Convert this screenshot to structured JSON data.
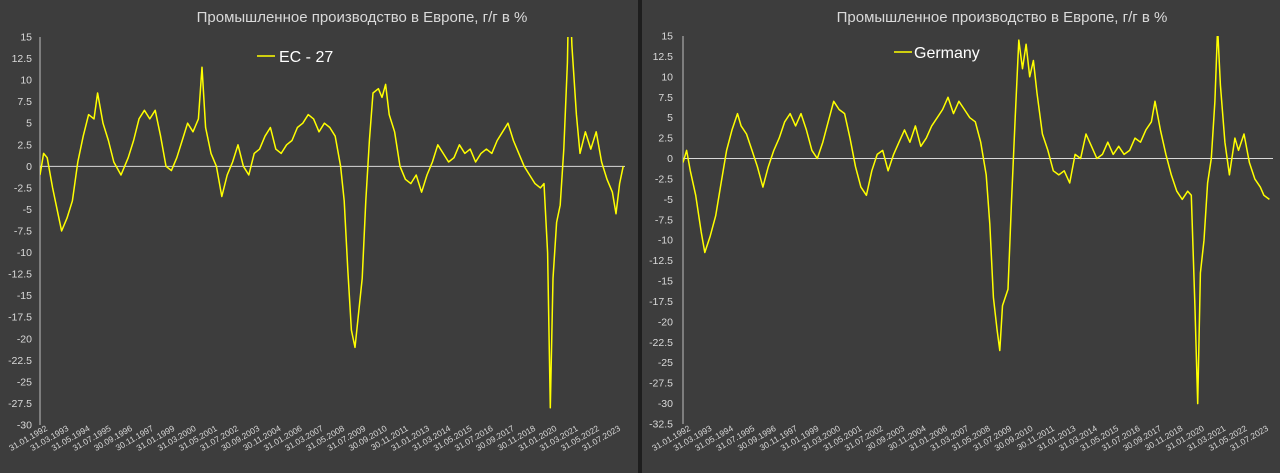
{
  "chart_data": [
    {
      "type": "line",
      "title": "Промышленное производство в Европе, г/г в %",
      "legend_position": "top-center",
      "grid": false,
      "ylim": [
        -30,
        15
      ],
      "y_ticks": [
        "15",
        "12.5",
        "10",
        "7.5",
        "5",
        "2.5",
        "0",
        "-2.5",
        "-5",
        "-7.5",
        "-10",
        "-12.5",
        "-15",
        "-17.5",
        "-20",
        "-22.5",
        "-25",
        "-27.5",
        "-30"
      ],
      "x_ticks": [
        "31.01.1992",
        "31.03.1993",
        "31.05.1994",
        "31.07.1995",
        "30.09.1996",
        "30.11.1997",
        "31.01.1999",
        "31.03.2000",
        "31.05.2001",
        "31.07.2002",
        "30.09.2003",
        "30.11.2004",
        "31.01.2006",
        "31.03.2007",
        "31.05.2008",
        "31.07.2009",
        "30.09.2010",
        "30.11.2011",
        "31.01.2013",
        "31.03.2014",
        "31.05.2015",
        "31.07.2016",
        "30.09.2017",
        "30.11.2018",
        "31.01.2020",
        "31.03.2021",
        "31.05.2022",
        "31.07.2023"
      ],
      "x_range": [
        1992.0,
        2024.5
      ],
      "series": [
        {
          "name": "ЕС - 27",
          "color": "#ffff00",
          "points": [
            [
              1992.0,
              -1.0
            ],
            [
              1992.2,
              1.5
            ],
            [
              1992.4,
              1.0
            ],
            [
              1992.7,
              -2.5
            ],
            [
              1993.0,
              -5.5
            ],
            [
              1993.2,
              -7.5
            ],
            [
              1993.5,
              -6.0
            ],
            [
              1993.8,
              -4.0
            ],
            [
              1994.1,
              0.5
            ],
            [
              1994.4,
              3.5
            ],
            [
              1994.7,
              6.0
            ],
            [
              1995.0,
              5.5
            ],
            [
              1995.2,
              8.5
            ],
            [
              1995.5,
              5.0
            ],
            [
              1995.8,
              3.0
            ],
            [
              1996.1,
              0.5
            ],
            [
              1996.5,
              -1.0
            ],
            [
              1996.9,
              1.0
            ],
            [
              1997.2,
              3.0
            ],
            [
              1997.5,
              5.5
            ],
            [
              1997.8,
              6.5
            ],
            [
              1998.1,
              5.5
            ],
            [
              1998.4,
              6.5
            ],
            [
              1998.7,
              3.5
            ],
            [
              1999.0,
              0.0
            ],
            [
              1999.3,
              -0.5
            ],
            [
              1999.6,
              1.0
            ],
            [
              1999.9,
              3.0
            ],
            [
              2000.2,
              5.0
            ],
            [
              2000.5,
              4.0
            ],
            [
              2000.8,
              5.5
            ],
            [
              2001.0,
              11.5
            ],
            [
              2001.2,
              4.5
            ],
            [
              2001.5,
              1.5
            ],
            [
              2001.8,
              0.0
            ],
            [
              2002.1,
              -3.5
            ],
            [
              2002.4,
              -1.0
            ],
            [
              2002.7,
              0.5
            ],
            [
              2003.0,
              2.5
            ],
            [
              2003.3,
              0.0
            ],
            [
              2003.6,
              -1.0
            ],
            [
              2003.9,
              1.5
            ],
            [
              2004.2,
              2.0
            ],
            [
              2004.5,
              3.5
            ],
            [
              2004.8,
              4.5
            ],
            [
              2005.1,
              2.0
            ],
            [
              2005.4,
              1.5
            ],
            [
              2005.7,
              2.5
            ],
            [
              2006.0,
              3.0
            ],
            [
              2006.3,
              4.5
            ],
            [
              2006.6,
              5.0
            ],
            [
              2006.9,
              6.0
            ],
            [
              2007.2,
              5.5
            ],
            [
              2007.5,
              4.0
            ],
            [
              2007.8,
              5.0
            ],
            [
              2008.1,
              4.5
            ],
            [
              2008.4,
              3.5
            ],
            [
              2008.7,
              0.0
            ],
            [
              2008.9,
              -4.0
            ],
            [
              2009.1,
              -12.0
            ],
            [
              2009.3,
              -19.0
            ],
            [
              2009.5,
              -21.0
            ],
            [
              2009.7,
              -17.0
            ],
            [
              2009.9,
              -13.0
            ],
            [
              2010.1,
              -4.0
            ],
            [
              2010.3,
              3.0
            ],
            [
              2010.5,
              8.5
            ],
            [
              2010.8,
              9.0
            ],
            [
              2011.0,
              8.0
            ],
            [
              2011.2,
              9.5
            ],
            [
              2011.4,
              6.0
            ],
            [
              2011.7,
              4.0
            ],
            [
              2012.0,
              0.0
            ],
            [
              2012.3,
              -1.5
            ],
            [
              2012.6,
              -2.0
            ],
            [
              2012.9,
              -1.0
            ],
            [
              2013.2,
              -3.0
            ],
            [
              2013.5,
              -1.0
            ],
            [
              2013.8,
              0.5
            ],
            [
              2014.1,
              2.5
            ],
            [
              2014.4,
              1.5
            ],
            [
              2014.7,
              0.5
            ],
            [
              2015.0,
              1.0
            ],
            [
              2015.3,
              2.5
            ],
            [
              2015.6,
              1.5
            ],
            [
              2015.9,
              2.0
            ],
            [
              2016.2,
              0.5
            ],
            [
              2016.5,
              1.5
            ],
            [
              2016.8,
              2.0
            ],
            [
              2017.1,
              1.5
            ],
            [
              2017.4,
              3.0
            ],
            [
              2017.7,
              4.0
            ],
            [
              2018.0,
              5.0
            ],
            [
              2018.3,
              3.0
            ],
            [
              2018.6,
              1.5
            ],
            [
              2018.9,
              0.0
            ],
            [
              2019.2,
              -1.0
            ],
            [
              2019.5,
              -2.0
            ],
            [
              2019.8,
              -2.5
            ],
            [
              2020.0,
              -2.0
            ],
            [
              2020.2,
              -10.0
            ],
            [
              2020.35,
              -28.0
            ],
            [
              2020.5,
              -13.0
            ],
            [
              2020.7,
              -6.5
            ],
            [
              2020.9,
              -4.5
            ],
            [
              2021.1,
              2.0
            ],
            [
              2021.3,
              12.0
            ],
            [
              2021.4,
              23.0
            ],
            [
              2021.55,
              14.0
            ],
            [
              2021.8,
              6.0
            ],
            [
              2022.0,
              1.5
            ],
            [
              2022.3,
              4.0
            ],
            [
              2022.6,
              2.0
            ],
            [
              2022.9,
              4.0
            ],
            [
              2023.2,
              0.5
            ],
            [
              2023.5,
              -1.5
            ],
            [
              2023.8,
              -3.0
            ],
            [
              2024.0,
              -5.5
            ],
            [
              2024.2,
              -2.0
            ],
            [
              2024.4,
              0.0
            ]
          ]
        }
      ]
    },
    {
      "type": "line",
      "title": "Промышленное производство в Европе, г/г в %",
      "legend_position": "top-center",
      "grid": false,
      "ylim": [
        -32.5,
        15
      ],
      "y_ticks": [
        "15",
        "12.5",
        "10",
        "7.5",
        "5",
        "2.5",
        "0",
        "-2.5",
        "-5",
        "-7.5",
        "-10",
        "-12.5",
        "-15",
        "-17.5",
        "-20",
        "-22.5",
        "-25",
        "-27.5",
        "-30",
        "-32.5"
      ],
      "x_ticks": [
        "31.01.1992",
        "31.03.1993",
        "31.05.1994",
        "31.07.1995",
        "30.09.1996",
        "30.11.1997",
        "31.01.1999",
        "31.03.2000",
        "31.05.2001",
        "31.07.2002",
        "30.09.2003",
        "30.11.2004",
        "31.01.2006",
        "31.03.2007",
        "31.05.2008",
        "31.07.2009",
        "30.09.2010",
        "30.11.2011",
        "31.01.2013",
        "31.03.2014",
        "31.05.2015",
        "31.07.2016",
        "30.09.2017",
        "30.11.2018",
        "31.01.2020",
        "31.03.2021",
        "31.05.2022",
        "31.07.2023"
      ],
      "x_range": [
        1992.0,
        2024.5
      ],
      "series": [
        {
          "name": "Germany",
          "color": "#ffff00",
          "points": [
            [
              1992.0,
              -0.5
            ],
            [
              1992.2,
              1.0
            ],
            [
              1992.4,
              -1.5
            ],
            [
              1992.7,
              -4.5
            ],
            [
              1993.0,
              -9.0
            ],
            [
              1993.2,
              -11.5
            ],
            [
              1993.5,
              -9.5
            ],
            [
              1993.8,
              -7.0
            ],
            [
              1994.1,
              -3.0
            ],
            [
              1994.4,
              1.0
            ],
            [
              1994.7,
              3.5
            ],
            [
              1995.0,
              5.5
            ],
            [
              1995.2,
              4.0
            ],
            [
              1995.5,
              3.0
            ],
            [
              1995.8,
              1.0
            ],
            [
              1996.1,
              -1.0
            ],
            [
              1996.4,
              -3.5
            ],
            [
              1996.7,
              -1.0
            ],
            [
              1997.0,
              1.0
            ],
            [
              1997.3,
              2.5
            ],
            [
              1997.6,
              4.5
            ],
            [
              1997.9,
              5.5
            ],
            [
              1998.2,
              4.0
            ],
            [
              1998.5,
              5.5
            ],
            [
              1998.8,
              3.5
            ],
            [
              1999.1,
              1.0
            ],
            [
              1999.4,
              0.0
            ],
            [
              1999.7,
              2.0
            ],
            [
              2000.0,
              4.5
            ],
            [
              2000.3,
              7.0
            ],
            [
              2000.6,
              6.0
            ],
            [
              2000.9,
              5.5
            ],
            [
              2001.2,
              2.5
            ],
            [
              2001.5,
              -1.0
            ],
            [
              2001.8,
              -3.5
            ],
            [
              2002.1,
              -4.5
            ],
            [
              2002.4,
              -1.5
            ],
            [
              2002.7,
              0.5
            ],
            [
              2003.0,
              1.0
            ],
            [
              2003.3,
              -1.5
            ],
            [
              2003.6,
              0.5
            ],
            [
              2003.9,
              2.0
            ],
            [
              2004.2,
              3.5
            ],
            [
              2004.5,
              2.0
            ],
            [
              2004.8,
              4.0
            ],
            [
              2005.1,
              1.5
            ],
            [
              2005.4,
              2.5
            ],
            [
              2005.7,
              4.0
            ],
            [
              2006.0,
              5.0
            ],
            [
              2006.3,
              6.0
            ],
            [
              2006.6,
              7.5
            ],
            [
              2006.9,
              5.5
            ],
            [
              2007.2,
              7.0
            ],
            [
              2007.5,
              6.0
            ],
            [
              2007.8,
              5.0
            ],
            [
              2008.1,
              4.5
            ],
            [
              2008.4,
              2.0
            ],
            [
              2008.7,
              -2.0
            ],
            [
              2008.9,
              -8.0
            ],
            [
              2009.1,
              -17.0
            ],
            [
              2009.3,
              -21.0
            ],
            [
              2009.45,
              -23.5
            ],
            [
              2009.6,
              -18.0
            ],
            [
              2009.9,
              -16.0
            ],
            [
              2010.1,
              -5.0
            ],
            [
              2010.3,
              5.0
            ],
            [
              2010.5,
              14.5
            ],
            [
              2010.7,
              11.0
            ],
            [
              2010.9,
              14.0
            ],
            [
              2011.1,
              10.0
            ],
            [
              2011.3,
              12.0
            ],
            [
              2011.5,
              8.0
            ],
            [
              2011.8,
              3.0
            ],
            [
              2012.1,
              1.0
            ],
            [
              2012.4,
              -1.5
            ],
            [
              2012.7,
              -2.0
            ],
            [
              2013.0,
              -1.5
            ],
            [
              2013.3,
              -3.0
            ],
            [
              2013.6,
              0.5
            ],
            [
              2013.9,
              0.0
            ],
            [
              2014.2,
              3.0
            ],
            [
              2014.5,
              1.5
            ],
            [
              2014.8,
              0.0
            ],
            [
              2015.1,
              0.5
            ],
            [
              2015.4,
              2.0
            ],
            [
              2015.7,
              0.5
            ],
            [
              2016.0,
              1.5
            ],
            [
              2016.3,
              0.5
            ],
            [
              2016.6,
              1.0
            ],
            [
              2016.9,
              2.5
            ],
            [
              2017.2,
              2.0
            ],
            [
              2017.5,
              3.5
            ],
            [
              2017.8,
              4.5
            ],
            [
              2018.0,
              7.0
            ],
            [
              2018.3,
              3.5
            ],
            [
              2018.6,
              0.5
            ],
            [
              2018.9,
              -2.0
            ],
            [
              2019.2,
              -4.0
            ],
            [
              2019.5,
              -5.0
            ],
            [
              2019.8,
              -4.0
            ],
            [
              2020.0,
              -4.5
            ],
            [
              2020.2,
              -18.0
            ],
            [
              2020.35,
              -30.0
            ],
            [
              2020.5,
              -14.0
            ],
            [
              2020.7,
              -10.0
            ],
            [
              2020.9,
              -3.0
            ],
            [
              2021.1,
              0.0
            ],
            [
              2021.3,
              7.0
            ],
            [
              2021.45,
              16.0
            ],
            [
              2021.6,
              9.0
            ],
            [
              2021.85,
              2.0
            ],
            [
              2022.1,
              -2.0
            ],
            [
              2022.4,
              2.5
            ],
            [
              2022.6,
              1.0
            ],
            [
              2022.9,
              3.0
            ],
            [
              2023.2,
              -0.5
            ],
            [
              2023.5,
              -2.5
            ],
            [
              2023.8,
              -3.5
            ],
            [
              2024.0,
              -4.5
            ],
            [
              2024.3,
              -5.0
            ]
          ]
        }
      ]
    }
  ]
}
